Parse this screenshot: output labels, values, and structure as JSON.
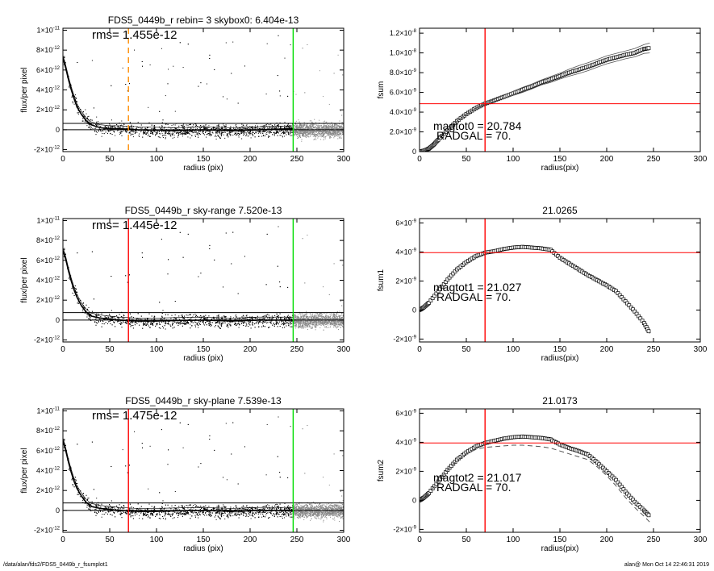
{
  "chart_data": [
    {
      "type": "scatter",
      "title": "FDS5_0449b_r rebin= 3    skybox0:  6.404e-13",
      "annotation": "rms= 1.455e-12",
      "xlabel": "radius (pix)",
      "ylabel": "flux/per pixel",
      "xlim": [
        0,
        300
      ],
      "ylim": [
        -2.2e-12,
        1.02e-11
      ],
      "x_ticks": [
        "0",
        "50",
        "100",
        "150",
        "200",
        "250",
        "300"
      ],
      "y_ticks": [
        {
          "v": -2e-12,
          "m": "-2",
          "e": "-12"
        },
        {
          "v": 0,
          "m": "0",
          "e": ""
        },
        {
          "v": 2e-12,
          "m": "2",
          "e": "-12"
        },
        {
          "v": 4e-12,
          "m": "4",
          "e": "-12"
        },
        {
          "v": 6e-12,
          "m": "6",
          "e": "-12"
        },
        {
          "v": 8e-12,
          "m": "8",
          "e": "-12"
        },
        {
          "v": 1e-11,
          "m": "1",
          "e": "-11"
        }
      ],
      "profile": {
        "x": [
          0,
          3,
          6,
          9,
          12,
          15,
          20,
          25,
          30,
          40,
          50,
          60,
          70,
          80,
          100,
          120,
          150,
          180,
          210,
          246
        ],
        "y": [
          7.2e-12,
          6.2e-12,
          5e-12,
          4e-12,
          3.1e-12,
          2.3e-12,
          1.5e-12,
          9e-13,
          5e-13,
          2e-13,
          1e-13,
          1e-13,
          5e-14,
          0,
          -5e-14,
          -1e-13,
          0,
          -1e-13,
          0,
          1e-13
        ]
      },
      "hlines": [
        {
          "y": 0,
          "color": "#000000"
        },
        {
          "y": 6.4e-13,
          "color": "#000000"
        }
      ],
      "vlines": [
        {
          "x": 70,
          "color": "#ff8c00",
          "dash": true
        },
        {
          "x": 246,
          "color": "#00dd00",
          "dash": false
        }
      ],
      "grid": false
    },
    {
      "type": "line",
      "title": "",
      "annotation": "magtot0 =  20.784",
      "annotation2": "RADGAL =     70.",
      "xlabel": "radius(pix)",
      "ylabel": "fsum",
      "xlim": [
        0,
        300
      ],
      "ylim": [
        0,
        1.25e-08
      ],
      "x_ticks": [
        "0",
        "50",
        "100",
        "150",
        "200",
        "250",
        "300"
      ],
      "y_ticks": [
        {
          "v": 0,
          "m": "0",
          "e": ""
        },
        {
          "v": 2e-09,
          "m": "2.0",
          "e": "-9"
        },
        {
          "v": 4e-09,
          "m": "4.0",
          "e": "-9"
        },
        {
          "v": 6e-09,
          "m": "6.0",
          "e": "-9"
        },
        {
          "v": 8e-09,
          "m": "8.0",
          "e": "-9"
        },
        {
          "v": 1e-08,
          "m": "1.0",
          "e": "-8"
        },
        {
          "v": 1.2e-08,
          "m": "1.2",
          "e": "-8"
        }
      ],
      "x": [
        0,
        5,
        10,
        15,
        20,
        30,
        40,
        50,
        60,
        70,
        80,
        90,
        100,
        110,
        120,
        130,
        140,
        150,
        160,
        170,
        180,
        190,
        200,
        210,
        220,
        230,
        240,
        246
      ],
      "series": [
        {
          "values": [
            0,
            1e-10,
            3e-10,
            7e-10,
            1.2e-09,
            2.2e-09,
            3.1e-09,
            3.8e-09,
            4.4e-09,
            4.85e-09,
            5.2e-09,
            5.55e-09,
            5.9e-09,
            6.25e-09,
            6.6e-09,
            7e-09,
            7.3e-09,
            7.65e-09,
            8e-09,
            8.3e-09,
            8.6e-09,
            8.95e-09,
            9.3e-09,
            9.55e-09,
            9.8e-09,
            1e-08,
            1.04e-08,
            1.05e-08
          ],
          "style": "markers"
        },
        {
          "values": [
            0,
            1e-10,
            3e-10,
            7e-10,
            1.2e-09,
            2.2e-09,
            3.1e-09,
            3.8e-09,
            4.4e-09,
            4.9e-09,
            5.3e-09,
            5.7e-09,
            6.1e-09,
            6.5e-09,
            6.85e-09,
            7.25e-09,
            7.6e-09,
            7.95e-09,
            8.35e-09,
            8.7e-09,
            9e-09,
            9.35e-09,
            9.7e-09,
            9.95e-09,
            1.02e-08,
            1.045e-08,
            1.085e-08,
            1.1e-08
          ],
          "style": "thin"
        },
        {
          "values": [
            0,
            1e-10,
            3e-10,
            7e-10,
            1.2e-09,
            2.2e-09,
            3.1e-09,
            3.8e-09,
            4.4e-09,
            4.8e-09,
            5.1e-09,
            5.4e-09,
            5.7e-09,
            6e-09,
            6.35e-09,
            6.75e-09,
            7e-09,
            7.35e-09,
            7.65e-09,
            7.9e-09,
            8.2e-09,
            8.55e-09,
            8.9e-09,
            9.15e-09,
            9.4e-09,
            9.6e-09,
            9.95e-09,
            1e-08
          ],
          "style": "thin"
        }
      ],
      "vlines": [
        {
          "x": 70,
          "color": "#ff0000"
        }
      ],
      "hlines": [
        {
          "y": 4.85e-09,
          "color": "#ff0000"
        }
      ],
      "grid": false
    },
    {
      "type": "scatter",
      "title": "FDS5_0449b_r sky-range  7.520e-13",
      "annotation": "rms= 1.445e-12",
      "xlabel": "radius (pix)",
      "ylabel": "flux/per pixel",
      "xlim": [
        0,
        300
      ],
      "ylim": [
        -2.2e-12,
        1.02e-11
      ],
      "x_ticks": [
        "0",
        "50",
        "100",
        "150",
        "200",
        "250",
        "300"
      ],
      "y_ticks": [
        {
          "v": -2e-12,
          "m": "-2",
          "e": "-12"
        },
        {
          "v": 0,
          "m": "0",
          "e": ""
        },
        {
          "v": 2e-12,
          "m": "2",
          "e": "-12"
        },
        {
          "v": 4e-12,
          "m": "4",
          "e": "-12"
        },
        {
          "v": 6e-12,
          "m": "6",
          "e": "-12"
        },
        {
          "v": 8e-12,
          "m": "8",
          "e": "-12"
        },
        {
          "v": 1e-11,
          "m": "1",
          "e": "-11"
        }
      ],
      "profile": {
        "x": [
          0,
          3,
          6,
          9,
          12,
          15,
          20,
          25,
          30,
          40,
          50,
          60,
          70,
          80,
          100,
          120,
          150,
          180,
          210,
          246
        ],
        "y": [
          7e-12,
          6.1e-12,
          4.9e-12,
          3.9e-12,
          3e-12,
          2.3e-12,
          1.4e-12,
          8e-13,
          4e-13,
          2e-13,
          1e-13,
          0,
          -5e-14,
          -1e-13,
          -1e-13,
          -5e-14,
          0,
          -1e-13,
          0,
          0
        ]
      },
      "hlines": [
        {
          "y": 0,
          "color": "#000000"
        },
        {
          "y": 7.5e-13,
          "color": "#000000"
        }
      ],
      "vlines": [
        {
          "x": 70,
          "color": "#ff0000",
          "dash": false
        },
        {
          "x": 246,
          "color": "#00dd00",
          "dash": false
        }
      ],
      "grid": false
    },
    {
      "type": "line",
      "title": "21.0265",
      "annotation": "magtot1 =  21.027",
      "annotation2": "RADGAL =     70.",
      "xlabel": "radius(pix)",
      "ylabel": "fsum1",
      "xlim": [
        0,
        300
      ],
      "ylim": [
        -2.2e-09,
        6.3e-09
      ],
      "x_ticks": [
        "0",
        "50",
        "100",
        "150",
        "200",
        "250",
        "300"
      ],
      "y_ticks": [
        {
          "v": -2e-09,
          "m": "-2",
          "e": "-9"
        },
        {
          "v": 0,
          "m": "0",
          "e": ""
        },
        {
          "v": 2e-09,
          "m": "2",
          "e": "-9"
        },
        {
          "v": 4e-09,
          "m": "4",
          "e": "-9"
        },
        {
          "v": 6e-09,
          "m": "6",
          "e": "-9"
        }
      ],
      "x": [
        0,
        5,
        10,
        20,
        30,
        40,
        50,
        60,
        70,
        80,
        90,
        100,
        110,
        120,
        130,
        140,
        150,
        160,
        170,
        180,
        190,
        200,
        210,
        220,
        230,
        240,
        246
      ],
      "series": [
        {
          "values": [
            0,
            2e-10,
            5e-10,
            1.3e-09,
            2.1e-09,
            2.8e-09,
            3.3e-09,
            3.7e-09,
            3.95e-09,
            4.05e-09,
            4.2e-09,
            4.3e-09,
            4.35e-09,
            4.3e-09,
            4.25e-09,
            4.15e-09,
            3.6e-09,
            3.2e-09,
            2.8e-09,
            2.4e-09,
            2.05e-09,
            1.7e-09,
            1.3e-09,
            6e-10,
            -1e-10,
            -9e-10,
            -1.6e-09
          ],
          "style": "markers"
        }
      ],
      "vlines": [
        {
          "x": 70,
          "color": "#ff0000"
        }
      ],
      "hlines": [
        {
          "y": 3.95e-09,
          "color": "#ff0000"
        }
      ],
      "grid": false
    },
    {
      "type": "scatter",
      "title": "FDS5_0449b_r sky-plane  7.539e-13",
      "annotation": "rms= 1.475e-12",
      "xlabel": "radius (pix)",
      "ylabel": "flux/per pixel",
      "xlim": [
        0,
        300
      ],
      "ylim": [
        -2.2e-12,
        1.02e-11
      ],
      "x_ticks": [
        "0",
        "50",
        "100",
        "150",
        "200",
        "250",
        "300"
      ],
      "y_ticks": [
        {
          "v": -2e-12,
          "m": "-2",
          "e": "-12"
        },
        {
          "v": 0,
          "m": "0",
          "e": ""
        },
        {
          "v": 2e-12,
          "m": "2",
          "e": "-12"
        },
        {
          "v": 4e-12,
          "m": "4",
          "e": "-12"
        },
        {
          "v": 6e-12,
          "m": "6",
          "e": "-12"
        },
        {
          "v": 8e-12,
          "m": "8",
          "e": "-12"
        },
        {
          "v": 1e-11,
          "m": "1",
          "e": "-11"
        }
      ],
      "profile": {
        "x": [
          0,
          3,
          6,
          9,
          12,
          15,
          20,
          25,
          30,
          40,
          50,
          60,
          70,
          80,
          100,
          120,
          150,
          180,
          210,
          246
        ],
        "y": [
          7e-12,
          6e-12,
          4.8e-12,
          3.8e-12,
          2.9e-12,
          2.2e-12,
          1.4e-12,
          8e-13,
          4e-13,
          2e-13,
          1e-13,
          0,
          -5e-14,
          -1e-13,
          -1e-13,
          -5e-14,
          0,
          -1e-13,
          0,
          0
        ]
      },
      "hlines": [
        {
          "y": 0,
          "color": "#000000"
        },
        {
          "y": 7.5e-13,
          "color": "#000000"
        }
      ],
      "vlines": [
        {
          "x": 70,
          "color": "#ff0000",
          "dash": false
        },
        {
          "x": 246,
          "color": "#00dd00",
          "dash": false
        }
      ],
      "grid": false
    },
    {
      "type": "line",
      "title": "21.0173",
      "annotation": "magtot2 =  21.017",
      "annotation2": "RADGAL =     70.",
      "xlabel": "radius(pix)",
      "ylabel": "fsum2",
      "xlim": [
        0,
        300
      ],
      "ylim": [
        -2.2e-09,
        6.3e-09
      ],
      "x_ticks": [
        "0",
        "50",
        "100",
        "150",
        "200",
        "250",
        "300"
      ],
      "y_ticks": [
        {
          "v": -2e-09,
          "m": "-2",
          "e": "-9"
        },
        {
          "v": 0,
          "m": "0",
          "e": ""
        },
        {
          "v": 2e-09,
          "m": "2",
          "e": "-9"
        },
        {
          "v": 4e-09,
          "m": "4",
          "e": "-9"
        },
        {
          "v": 6e-09,
          "m": "6",
          "e": "-9"
        }
      ],
      "x": [
        0,
        5,
        10,
        20,
        30,
        40,
        50,
        60,
        70,
        80,
        90,
        100,
        110,
        120,
        130,
        140,
        150,
        160,
        170,
        180,
        190,
        200,
        210,
        220,
        230,
        240,
        246
      ],
      "series": [
        {
          "values": [
            0,
            2e-10,
            5e-10,
            1.3e-09,
            2.1e-09,
            2.8e-09,
            3.3e-09,
            3.7e-09,
            3.95e-09,
            4.1e-09,
            4.25e-09,
            4.35e-09,
            4.4e-09,
            4.35e-09,
            4.3e-09,
            4.2e-09,
            3.85e-09,
            3.6e-09,
            3.4e-09,
            3.15e-09,
            2.6e-09,
            2e-09,
            1.4e-09,
            6e-10,
            -1e-10,
            -7e-10,
            -1.1e-09
          ],
          "style": "markers"
        },
        {
          "values": [
            0,
            2e-10,
            5e-10,
            1.3e-09,
            2.1e-09,
            2.75e-09,
            3.2e-09,
            3.5e-09,
            3.65e-09,
            3.7e-09,
            3.75e-09,
            3.8e-09,
            3.8e-09,
            3.75e-09,
            3.7e-09,
            3.6e-09,
            3.4e-09,
            3.2e-09,
            3e-09,
            2.8e-09,
            2.3e-09,
            1.7e-09,
            1e-09,
            2e-10,
            -5e-10,
            -1.1e-09,
            -1.5e-09
          ],
          "style": "dashed"
        }
      ],
      "vlines": [
        {
          "x": 70,
          "color": "#ff0000"
        }
      ],
      "hlines": [
        {
          "y": 3.95e-09,
          "color": "#ff0000"
        }
      ],
      "grid": false
    }
  ],
  "footer": {
    "left": "/data/alan/fds2/FDS5_0449b_r_fsumplot1",
    "right": "alan@  Mon Oct 14 22:46:31 2019"
  },
  "colors": {
    "scatter_points": "#000000",
    "scatter_outer": "#888888",
    "marker_fill": "#ffffff",
    "thin_line": "#555555"
  }
}
